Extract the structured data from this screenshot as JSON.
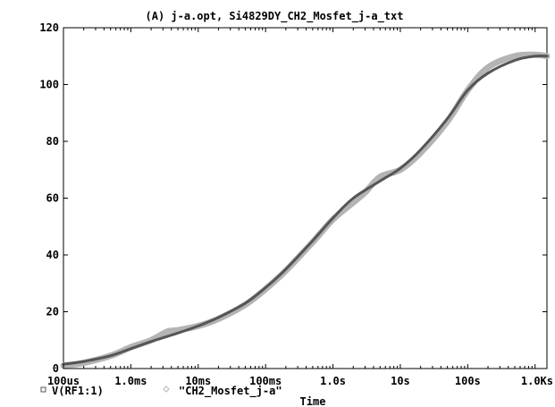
{
  "chart_data": {
    "type": "line",
    "title": "(A) j-a.opt, Si4829DY_CH2_Mosfet_j-a_txt",
    "xlabel": "Time",
    "x_scale": "log",
    "xlim": [
      "100us",
      "1.5Ks"
    ],
    "ylim": [
      0,
      120
    ],
    "x_ticks": [
      "100us",
      "1.0ms",
      "10ms",
      "100ms",
      "1.0s",
      "10s",
      "100s",
      "1.0Ks"
    ],
    "y_ticks": [
      "0",
      "20",
      "40",
      "60",
      "80",
      "100",
      "120"
    ],
    "grid": false,
    "legend_position": "bottom-left",
    "series": [
      {
        "name": "V(RF1:1)",
        "color": "#555555",
        "marker": "square",
        "x": [
          "100us",
          "200us",
          "500us",
          "1.0ms",
          "2.0ms",
          "5.0ms",
          "10ms",
          "20ms",
          "50ms",
          "100ms",
          "200ms",
          "500ms",
          "1.0s",
          "2.0s",
          "5.0s",
          "10s",
          "20s",
          "50s",
          "100s",
          "200s",
          "500s",
          "1.0Ks",
          "1.5Ks"
        ],
        "values": [
          1.5,
          2.5,
          4.5,
          7,
          9.5,
          12.5,
          15,
          18,
          23,
          28.5,
          35,
          45,
          53,
          60,
          66,
          70.5,
          77,
          88,
          98,
          104,
          108.5,
          110,
          110
        ]
      },
      {
        "name": "\"CH2_Mosfet_j-a\"",
        "color": "#b4b4b4",
        "marker": "diamond",
        "x": [
          "100us",
          "200us",
          "500us",
          "1.0ms",
          "2.0ms",
          "3.5ms",
          "5.0ms",
          "10ms",
          "20ms",
          "50ms",
          "100ms",
          "200ms",
          "500ms",
          "1.0s",
          "2.0s",
          "3.0s",
          "5.0s",
          "10s",
          "20s",
          "50s",
          "100s",
          "200s",
          "500s",
          "1.0Ks",
          "1.5Ks"
        ],
        "values": [
          1,
          2,
          4.5,
          7.5,
          10,
          13,
          13.5,
          15,
          17.5,
          22.5,
          28,
          34.5,
          44.5,
          52.5,
          58.5,
          62,
          67.5,
          70,
          76,
          87,
          98,
          106,
          110,
          110.5,
          110
        ]
      }
    ]
  }
}
